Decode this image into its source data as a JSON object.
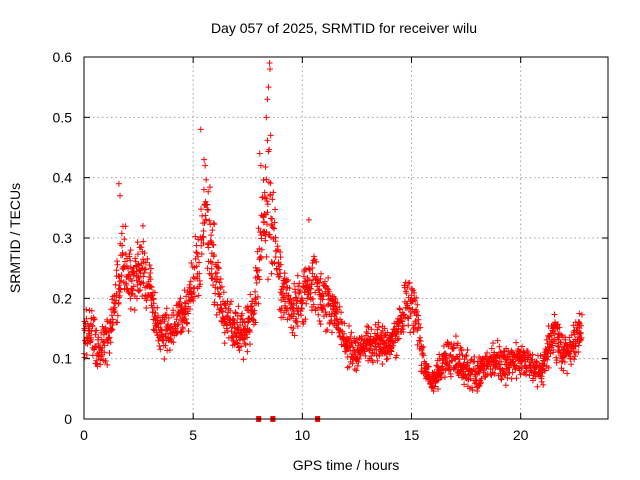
{
  "chart_data": {
    "type": "scatter",
    "title": "Day 057 of 2025, SRMTID for receiver wilu",
    "xlabel": "GPS time / hours",
    "ylabel": "SRMTID / TECUs",
    "xlim": [
      0,
      24
    ],
    "ylim": [
      0,
      0.6
    ],
    "x_ticks": [
      0,
      5,
      10,
      15,
      20
    ],
    "x_tick_labels": [
      "0",
      "5",
      "10",
      "15",
      "20"
    ],
    "y_ticks": [
      0,
      0.1,
      0.2,
      0.3,
      0.4,
      0.5,
      0.6
    ],
    "y_tick_labels": [
      "0",
      "0.1",
      "0.2",
      "0.3",
      "0.4",
      "0.5",
      "0.6"
    ],
    "grid": true,
    "marker": "plus",
    "color": "#ff0000",
    "x_axis_markers": [
      8.0,
      8.65,
      10.7
    ],
    "series": [
      {
        "name": "SRMTID",
        "envelope": {
          "hours": [
            0.0,
            0.3,
            0.6,
            1.0,
            1.5,
            1.8,
            2.2,
            2.6,
            3.0,
            3.3,
            3.6,
            4.0,
            4.5,
            4.9,
            5.2,
            5.5,
            5.9,
            6.3,
            6.8,
            7.3,
            7.7,
            8.0,
            8.2,
            8.5,
            8.7,
            9.0,
            9.5,
            10.0,
            10.3,
            10.7,
            11.0,
            11.5,
            12.0,
            12.5,
            13.0,
            13.5,
            14.0,
            14.5,
            14.8,
            15.2,
            15.6,
            16.0,
            16.5,
            17.0,
            17.5,
            18.0,
            18.5,
            19.0,
            19.5,
            20.0,
            20.5,
            21.0,
            21.3,
            21.6,
            22.0,
            22.3,
            22.6,
            22.8
          ],
          "centre": [
            0.14,
            0.16,
            0.11,
            0.13,
            0.2,
            0.27,
            0.22,
            0.25,
            0.22,
            0.17,
            0.14,
            0.15,
            0.17,
            0.2,
            0.25,
            0.34,
            0.27,
            0.18,
            0.15,
            0.14,
            0.17,
            0.24,
            0.33,
            0.36,
            0.31,
            0.22,
            0.18,
            0.2,
            0.23,
            0.21,
            0.2,
            0.18,
            0.12,
            0.11,
            0.12,
            0.13,
            0.12,
            0.16,
            0.2,
            0.18,
            0.08,
            0.06,
            0.1,
            0.1,
            0.08,
            0.07,
            0.09,
            0.1,
            0.09,
            0.1,
            0.09,
            0.08,
            0.13,
            0.14,
            0.11,
            0.12,
            0.14,
            0.15
          ],
          "spread": [
            0.05,
            0.06,
            0.05,
            0.06,
            0.08,
            0.1,
            0.07,
            0.07,
            0.07,
            0.06,
            0.05,
            0.05,
            0.06,
            0.07,
            0.1,
            0.12,
            0.09,
            0.06,
            0.05,
            0.05,
            0.06,
            0.09,
            0.13,
            0.2,
            0.1,
            0.07,
            0.06,
            0.06,
            0.07,
            0.07,
            0.07,
            0.06,
            0.05,
            0.04,
            0.05,
            0.05,
            0.05,
            0.06,
            0.06,
            0.06,
            0.04,
            0.03,
            0.04,
            0.05,
            0.04,
            0.04,
            0.04,
            0.05,
            0.04,
            0.04,
            0.04,
            0.04,
            0.05,
            0.06,
            0.05,
            0.05,
            0.05,
            0.05
          ]
        },
        "samples_per_hour": 60,
        "time_start": 0.0,
        "time_end": 22.8,
        "peak_points": [
          [
            5.35,
            0.48
          ],
          [
            5.5,
            0.43
          ],
          [
            5.55,
            0.42
          ],
          [
            1.6,
            0.39
          ],
          [
            1.65,
            0.37
          ],
          [
            8.05,
            0.44
          ],
          [
            8.1,
            0.42
          ],
          [
            8.35,
            0.5
          ],
          [
            8.4,
            0.53
          ],
          [
            8.45,
            0.55
          ],
          [
            8.5,
            0.59
          ],
          [
            8.52,
            0.58
          ],
          [
            8.55,
            0.47
          ],
          [
            2.7,
            0.32
          ],
          [
            10.3,
            0.33
          ]
        ]
      }
    ]
  }
}
